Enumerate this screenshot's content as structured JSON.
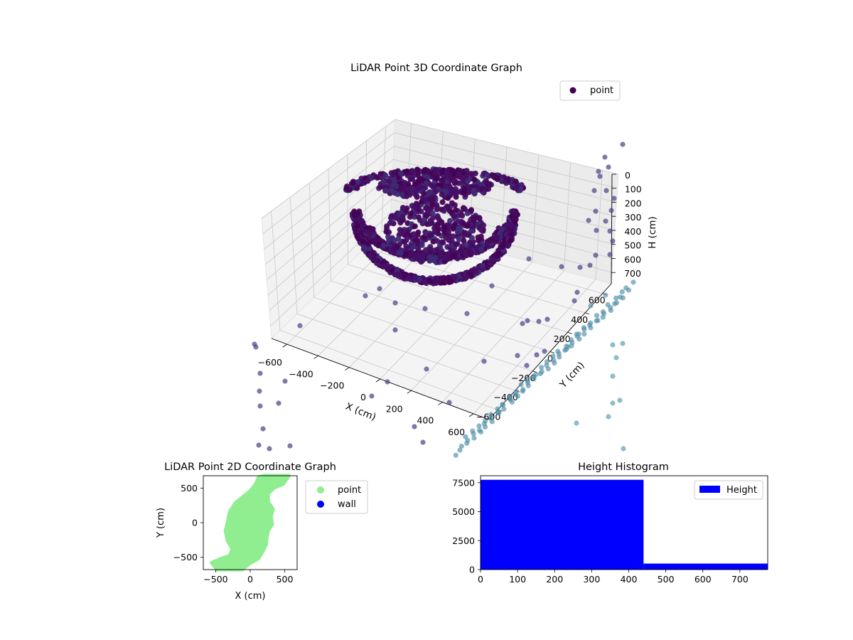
{
  "colors": {
    "point_scatter": "#90ee90",
    "wall_scatter": "#0000ff",
    "histogram": "#0000ff",
    "colormap_low": "#440154",
    "colormap_mid": "#31688e",
    "colormap_high": "#35b779"
  },
  "chart_data": [
    {
      "type": "scatter",
      "projection": "3d",
      "title": "LiDAR Point 3D Coordinate Graph",
      "xlabel": "X (cm)",
      "ylabel": "Y (cm)",
      "zlabel": "H (cm)",
      "xticks": [
        "−600",
        "−400",
        "−200",
        "0",
        "200",
        "400",
        "600"
      ],
      "yticks": [
        "−600",
        "−400",
        "−200",
        "0",
        "200",
        "400",
        "600"
      ],
      "zticks": [
        "0",
        "100",
        "200",
        "300",
        "400",
        "500",
        "600",
        "700"
      ],
      "xlim": [
        -700,
        700
      ],
      "ylim": [
        -700,
        700
      ],
      "zlim": [
        780,
        0
      ],
      "z_axis_inverted": true,
      "legend": {
        "position": "top-right",
        "entries": [
          "point"
        ]
      },
      "grid": true,
      "colormap": "viridis-like, colored by height",
      "series": [
        {
          "name": "point",
          "description_of_shape": "dense bowl-shaped cluster of points near center at heights ~50-250 cm plus a sparse ring of points at larger radii extending toward H 700 cm",
          "sample_points": [
            {
              "x": -100,
              "y": -50,
              "h": 60
            },
            {
              "x": 50,
              "y": -30,
              "h": 70
            },
            {
              "x": 120,
              "y": 100,
              "h": 80
            },
            {
              "x": -150,
              "y": 120,
              "h": 90
            },
            {
              "x": 0,
              "y": 0,
              "h": 180
            },
            {
              "x": 200,
              "y": -120,
              "h": 150
            },
            {
              "x": -220,
              "y": -200,
              "h": 130
            },
            {
              "x": 260,
              "y": 200,
              "h": 200
            },
            {
              "x": -600,
              "y": -600,
              "h": 500
            },
            {
              "x": 600,
              "y": 600,
              "h": 700
            }
          ]
        }
      ]
    },
    {
      "type": "scatter",
      "title": "LiDAR Point 2D Coordinate Graph",
      "xlabel": "X (cm)",
      "ylabel": "Y (cm)",
      "xticks": [
        "−500",
        "0",
        "500"
      ],
      "yticks": [
        "500",
        "0",
        "−500"
      ],
      "xlim": [
        -680,
        680
      ],
      "ylim": [
        -680,
        680
      ],
      "legend": {
        "position": "outside-right",
        "entries": [
          "point",
          "wall"
        ]
      },
      "series": [
        {
          "name": "point",
          "description_of_shape": "filled irregular region spanning roughly x −560..580, y −680..680",
          "outline": [
            [
              -480,
              -680
            ],
            [
              -560,
              -580
            ],
            [
              -420,
              -520
            ],
            [
              -300,
              -480
            ],
            [
              -260,
              -380
            ],
            [
              -330,
              -260
            ],
            [
              -360,
              -120
            ],
            [
              -330,
              0
            ],
            [
              -300,
              150
            ],
            [
              -220,
              280
            ],
            [
              -100,
              380
            ],
            [
              0,
              460
            ],
            [
              80,
              560
            ],
            [
              120,
              660
            ],
            [
              200,
              680
            ],
            [
              560,
              680
            ],
            [
              480,
              560
            ],
            [
              340,
              500
            ],
            [
              260,
              420
            ],
            [
              260,
              300
            ],
            [
              330,
              200
            ],
            [
              300,
              80
            ],
            [
              320,
              -20
            ],
            [
              260,
              -120
            ],
            [
              240,
              -220
            ],
            [
              230,
              -320
            ],
            [
              180,
              -420
            ],
            [
              120,
              -520
            ],
            [
              -20,
              -600
            ],
            [
              -120,
              -680
            ]
          ]
        },
        {
          "name": "wall",
          "points": []
        }
      ]
    },
    {
      "type": "bar",
      "title": "Height Histogram",
      "xticks": [
        "0",
        "100",
        "200",
        "300",
        "400",
        "500",
        "600",
        "700"
      ],
      "yticks": [
        "0",
        "2500",
        "5000",
        "7500"
      ],
      "xlim": [
        0,
        775
      ],
      "ylim": [
        0,
        8100
      ],
      "legend": {
        "position": "top-right",
        "entries": [
          "Height"
        ]
      },
      "bins": [
        {
          "x_start": 0,
          "x_end": 440,
          "value": 7750
        },
        {
          "x_start": 440,
          "x_end": 775,
          "value": 520
        }
      ]
    }
  ]
}
